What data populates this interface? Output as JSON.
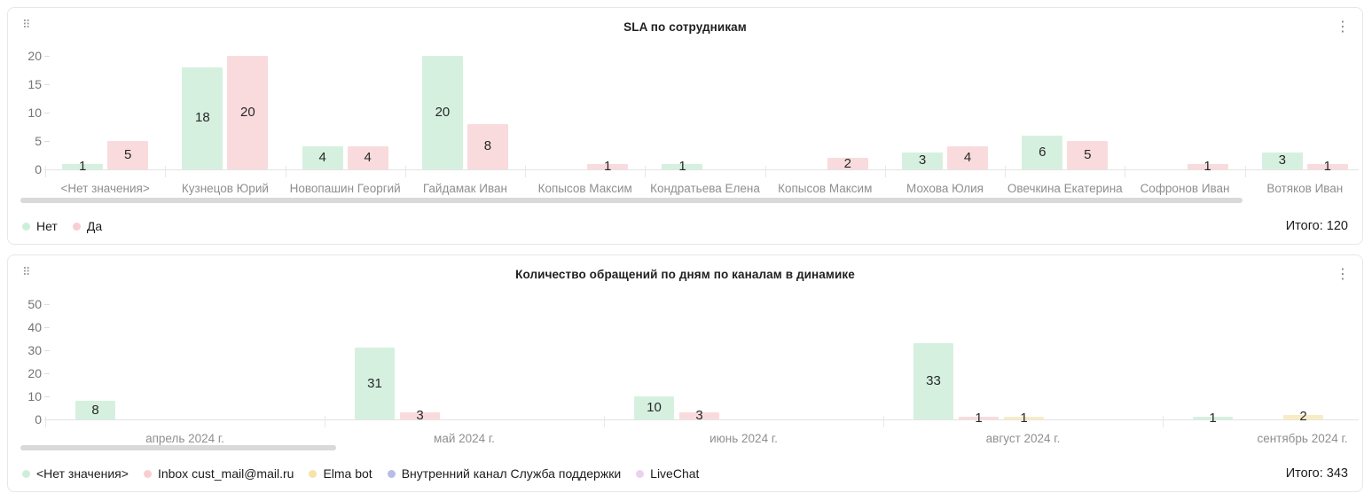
{
  "icons": {
    "drag_handle": "⠿",
    "kebab": "⋮"
  },
  "panels": [
    {
      "title": "SLA по сотрудникам",
      "total_label": "Итого: 120",
      "legend": [
        {
          "label": "Нет",
          "color": "#cfeeda"
        },
        {
          "label": "Да",
          "color": "#f8ced3"
        }
      ]
    },
    {
      "title": "Количество обращений по дням по каналам в динамике",
      "total_label": "Итого: 343",
      "legend": [
        {
          "label": "<Нет значения>",
          "color": "#cfeeda"
        },
        {
          "label": "Inbox cust_mail@mail.ru",
          "color": "#f8ced3"
        },
        {
          "label": "Elma bot",
          "color": "#f5e3a8"
        },
        {
          "label": "Внутренний канал Служба поддержки",
          "color": "#b7bde7"
        },
        {
          "label": "LiveChat",
          "color": "#ead2ef"
        }
      ]
    }
  ],
  "chart_data": [
    {
      "type": "bar",
      "title": "SLA по сотрудникам",
      "categories": [
        "<Нет значения>",
        "Кузнецов Юрий",
        "Новопашин Георгий",
        "Гайдамак Иван",
        "Копысов Максим",
        "Кондратьева Елена",
        "Копысов Максим",
        "Мохова Юлия",
        "Овечкина Екатерина",
        "Софронов Иван",
        "Вотяков Иван"
      ],
      "series": [
        {
          "name": "Нет",
          "color": "#d6f0e0",
          "values": [
            1,
            18,
            4,
            20,
            null,
            1,
            null,
            3,
            6,
            null,
            3
          ]
        },
        {
          "name": "Да",
          "color": "#f9dbde",
          "values": [
            5,
            20,
            4,
            8,
            1,
            null,
            2,
            4,
            5,
            1,
            1
          ]
        }
      ],
      "xlabel": "",
      "ylabel": "",
      "ylim": [
        0,
        20
      ],
      "y_ticks": [
        0,
        5,
        10,
        15,
        20
      ],
      "grid": false,
      "legend_position": "bottom-left",
      "total": 120,
      "total_label": "Итого: 120",
      "horizontal_scroll": true
    },
    {
      "type": "bar",
      "title": "Количество обращений по дням по каналам в динамике",
      "categories": [
        "апрель 2024 г.",
        "май 2024 г.",
        "июнь 2024 г.",
        "август 2024 г.",
        "сентябрь 2024 г."
      ],
      "series": [
        {
          "name": "<Нет значения>",
          "color": "#d6f0e0",
          "values": [
            8,
            31,
            10,
            33,
            1
          ]
        },
        {
          "name": "Inbox cust_mail@mail.ru",
          "color": "#f9dbde",
          "values": [
            null,
            3,
            3,
            1,
            null
          ]
        },
        {
          "name": "Elma bot",
          "color": "#f8ecc3",
          "values": [
            null,
            null,
            null,
            1,
            2
          ]
        },
        {
          "name": "Внутренний канал Служба поддержки",
          "color": "#b7bde7",
          "values": [
            null,
            null,
            null,
            null,
            null
          ]
        },
        {
          "name": "LiveChat",
          "color": "#ead2ef",
          "values": [
            null,
            null,
            null,
            null,
            null
          ]
        }
      ],
      "xlabel": "",
      "ylabel": "",
      "ylim": [
        0,
        50
      ],
      "y_ticks": [
        0,
        10,
        20,
        30,
        40,
        50
      ],
      "grid": false,
      "legend_position": "bottom-left",
      "total": 343,
      "total_label": "Итого: 343",
      "horizontal_scroll": true
    }
  ]
}
